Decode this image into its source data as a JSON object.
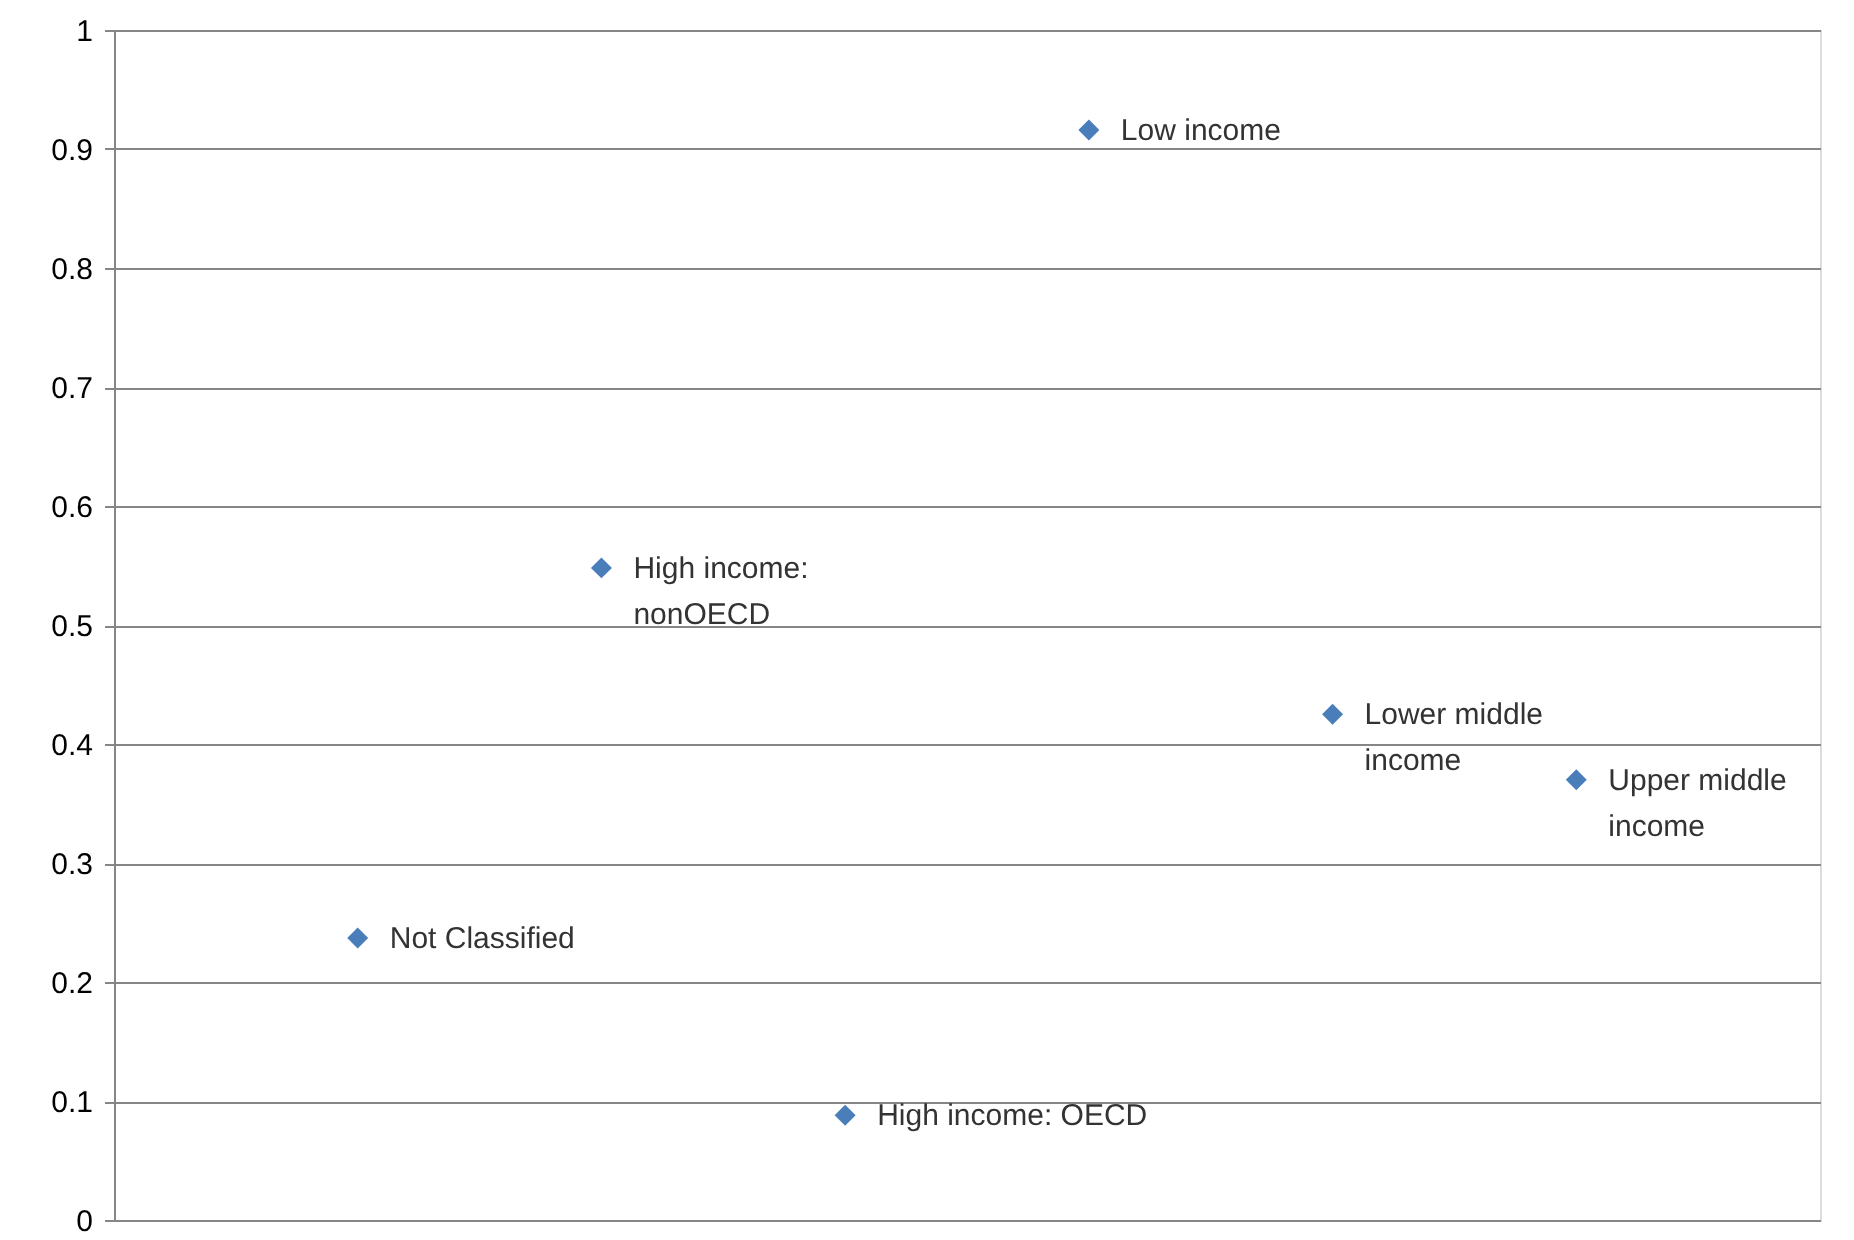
{
  "chart_data": {
    "type": "scatter",
    "categories": [
      null,
      null,
      null,
      null,
      null,
      null
    ],
    "series": [
      {
        "color": "#4a7ebb",
        "values": [
          0.237,
          0.548,
          0.088,
          0.916,
          0.425,
          0.37
        ]
      }
    ],
    "annotations": [
      "Not Classified",
      "High income:\nnonOECD",
      "High income: OECD",
      "Low income",
      "Lower middle\nincome",
      "Upper middle\nincome"
    ],
    "ylim": [
      0,
      1
    ],
    "yticks": [
      0,
      0.1,
      0.2,
      0.3,
      0.4,
      0.5,
      0.6,
      0.7,
      0.8,
      0.9,
      1
    ],
    "grid": "y",
    "marker": "diamond",
    "tick_labels": "y"
  }
}
